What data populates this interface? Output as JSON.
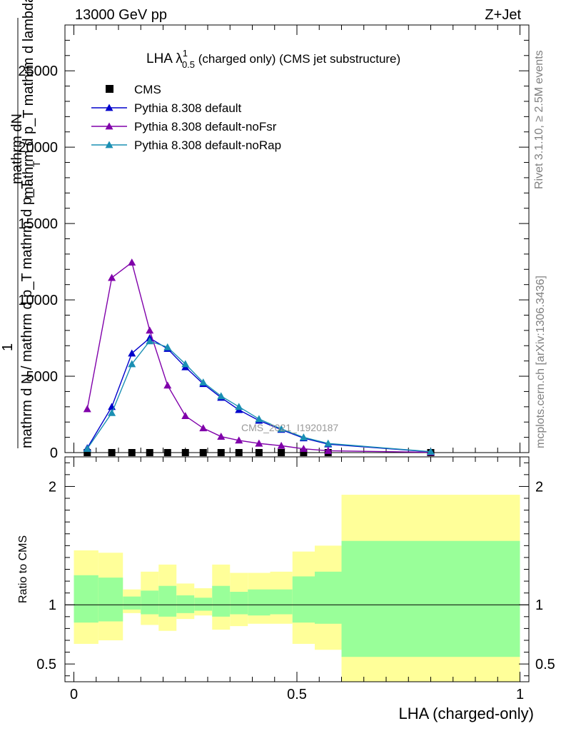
{
  "header": {
    "left": "13000 GeV pp",
    "right": "Z+Jet"
  },
  "title": {
    "main": "LHA λ",
    "sup": "1",
    "sub": "0.5",
    "rest": " (charged only) (CMS jet substructure)"
  },
  "side_labels": {
    "rivet": "Rivet 3.1.10, ≥ 2.5M events",
    "mcplots": "mcplots.cern.ch [arXiv:1306.3436]"
  },
  "watermark": "CMS_2021_I1920187",
  "chart_data": [
    {
      "type": "line",
      "ylabel_lines": [
        "mathrm dN",
        "mathrm d p_T mathrm d lambda",
        "1",
        "mathrm d N / mathrm d p_T mathrm d p_T"
      ],
      "ylabel_sub": "T",
      "ylim": [
        0,
        28000
      ],
      "xlim": [
        -0.02,
        1.02
      ],
      "yticks": [
        0,
        5000,
        10000,
        15000,
        20000,
        25000
      ],
      "yticklabels": [
        "0",
        "5000",
        "10000",
        "15000",
        "20000",
        "25000"
      ],
      "legend_position": "top-left",
      "x": [
        0.03,
        0.085,
        0.13,
        0.17,
        0.21,
        0.25,
        0.29,
        0.33,
        0.37,
        0.415,
        0.465,
        0.515,
        0.57,
        0.8
      ],
      "series": [
        {
          "name": "CMS",
          "marker": "square",
          "color": "#000000",
          "values": [
            0,
            0,
            0,
            0,
            0,
            0,
            0,
            0,
            0,
            0,
            0,
            0,
            0,
            0
          ]
        },
        {
          "name": "Pythia 8.308 default",
          "marker": "triangle",
          "color": "#0000cc",
          "values": [
            300,
            3000,
            6500,
            7500,
            6800,
            5600,
            4500,
            3600,
            2800,
            2100,
            1500,
            950,
            550,
            50
          ]
        },
        {
          "name": "Pythia 8.308 default-noFsr",
          "marker": "triangle",
          "color": "#8000aa",
          "values": [
            2850,
            11450,
            12450,
            8000,
            4400,
            2400,
            1600,
            1050,
            800,
            600,
            450,
            250,
            120,
            20
          ]
        },
        {
          "name": "Pythia 8.308 default-noRap",
          "marker": "triangle",
          "color": "#1a8fb3",
          "values": [
            250,
            2600,
            5800,
            7300,
            6900,
            5800,
            4600,
            3700,
            3000,
            2200,
            1550,
            1000,
            600,
            60
          ]
        }
      ]
    },
    {
      "type": "area",
      "xlabel": "LHA (charged-only)",
      "ylabel": "Ratio to CMS",
      "xlim": [
        -0.02,
        1.02
      ],
      "ylim": [
        0.35,
        2.25
      ],
      "xticks": [
        0,
        0.5,
        1
      ],
      "xticklabels": [
        "0",
        "0.5",
        "1"
      ],
      "yticks": [
        0.5,
        1,
        2
      ],
      "yticklabels": [
        "0.5",
        "1",
        "2"
      ],
      "reference_line": 1,
      "bins": [
        {
          "x0": 0.0,
          "x1": 0.055,
          "outer": [
            0.67,
            1.46
          ],
          "inner": [
            0.85,
            1.25
          ]
        },
        {
          "x0": 0.055,
          "x1": 0.11,
          "outer": [
            0.7,
            1.44
          ],
          "inner": [
            0.86,
            1.23
          ]
        },
        {
          "x0": 0.11,
          "x1": 0.15,
          "outer": [
            0.93,
            1.13
          ],
          "inner": [
            0.96,
            1.07
          ]
        },
        {
          "x0": 0.15,
          "x1": 0.19,
          "outer": [
            0.83,
            1.28
          ],
          "inner": [
            0.92,
            1.12
          ]
        },
        {
          "x0": 0.19,
          "x1": 0.23,
          "outer": [
            0.78,
            1.34
          ],
          "inner": [
            0.9,
            1.16
          ]
        },
        {
          "x0": 0.23,
          "x1": 0.27,
          "outer": [
            0.88,
            1.18
          ],
          "inner": [
            0.93,
            1.08
          ]
        },
        {
          "x0": 0.27,
          "x1": 0.31,
          "outer": [
            0.91,
            1.14
          ],
          "inner": [
            0.95,
            1.06
          ]
        },
        {
          "x0": 0.31,
          "x1": 0.35,
          "outer": [
            0.79,
            1.34
          ],
          "inner": [
            0.9,
            1.16
          ]
        },
        {
          "x0": 0.35,
          "x1": 0.39,
          "outer": [
            0.82,
            1.27
          ],
          "inner": [
            0.92,
            1.11
          ]
        },
        {
          "x0": 0.39,
          "x1": 0.44,
          "outer": [
            0.84,
            1.27
          ],
          "inner": [
            0.91,
            1.13
          ]
        },
        {
          "x0": 0.44,
          "x1": 0.49,
          "outer": [
            0.84,
            1.28
          ],
          "inner": [
            0.92,
            1.13
          ]
        },
        {
          "x0": 0.49,
          "x1": 0.54,
          "outer": [
            0.67,
            1.45
          ],
          "inner": [
            0.85,
            1.24
          ]
        },
        {
          "x0": 0.54,
          "x1": 0.6,
          "outer": [
            0.62,
            1.5
          ],
          "inner": [
            0.84,
            1.28
          ]
        },
        {
          "x0": 0.6,
          "x1": 1.0,
          "outer": [
            0.35,
            1.93
          ],
          "inner": [
            0.56,
            1.54
          ]
        }
      ]
    }
  ],
  "colors": {
    "band_outer": "#ffff99",
    "band_inner": "#99ff99",
    "watermark": "#999999",
    "side_text": "#808080"
  }
}
